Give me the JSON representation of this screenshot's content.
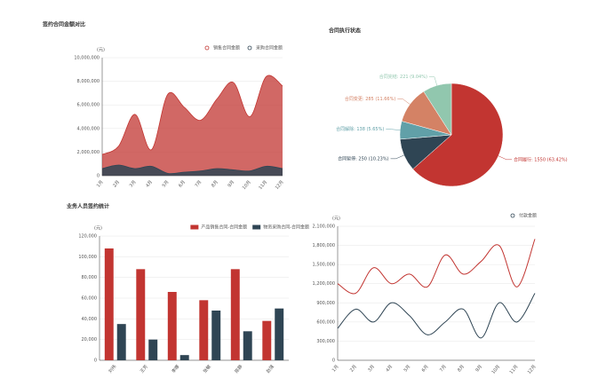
{
  "chart_data": [
    {
      "type": "area",
      "title": "签约合同金额对比",
      "y_label": "(元)",
      "categories": [
        "1月",
        "2月",
        "3月",
        "4月",
        "5月",
        "6月",
        "7月",
        "8月",
        "9月",
        "10月",
        "11月",
        "12月"
      ],
      "series": [
        {
          "name": "销售合同金额",
          "color": "#c23531",
          "values": [
            1800000,
            2500000,
            5200000,
            2200000,
            6900000,
            5800000,
            4700000,
            6500000,
            7900000,
            5000000,
            8400000,
            7600000
          ]
        },
        {
          "name": "采购合同金额",
          "color": "#2f4554",
          "values": [
            600000,
            900000,
            600000,
            800000,
            200000,
            300000,
            400000,
            600000,
            500000,
            400000,
            800000,
            600000
          ]
        }
      ],
      "ylim": [
        0,
        10000000
      ],
      "yticks": [
        0,
        {
          "value": 2000000,
          "label": "2,000,000"
        },
        {
          "value": 4000000,
          "label": "4,000,000"
        },
        {
          "value": 6000000,
          "label": "6,000,000"
        },
        {
          "value": 8000000,
          "label": "8,000,000"
        },
        {
          "value": 10000000,
          "label": "10,000,000"
        }
      ],
      "grid": true
    },
    {
      "type": "pie",
      "title": "合同执行状态",
      "values": [
        1550,
        250,
        138,
        285,
        221
      ],
      "value_labels": [
        "合同履行: 1550 (63.42%)",
        "合同暂停: 250 (10.23%)",
        "合同解除: 138 (5.65%)",
        "合同变更: 285 (11.66%)",
        "合同完结: 221 (9.04%)"
      ],
      "colors": [
        "#c23531",
        "#2f4554",
        "#61a0a8",
        "#d48265",
        "#91c7ae"
      ]
    },
    {
      "type": "bar",
      "title": "业务人员签约统计",
      "y_label": "(元)",
      "categories": [
        "刘伟",
        "王芳",
        "李娜",
        "张敏",
        "陈静",
        "赵强"
      ],
      "series": [
        {
          "name": "产品销售合同-合同金额",
          "color": "#c23531",
          "values": [
            108000,
            88000,
            66000,
            58000,
            88000,
            38000
          ]
        },
        {
          "name": "物资采购合同-合同金额",
          "color": "#2f4554",
          "values": [
            35000,
            20000,
            5000,
            48000,
            28000,
            50000
          ]
        }
      ],
      "ylim": [
        0,
        120000
      ],
      "yticks": [
        0,
        {
          "value": 20000,
          "label": "20,000"
        },
        {
          "value": 40000,
          "label": "40,000"
        },
        {
          "value": 60000,
          "label": "60,000"
        },
        {
          "value": 80000,
          "label": "80,000"
        },
        {
          "value": 100000,
          "label": "100,000"
        },
        {
          "value": 120000,
          "label": "120,000"
        }
      ],
      "grid": true
    },
    {
      "type": "line",
      "y_label": "(元)",
      "categories": [
        "1月",
        "2月",
        "3月",
        "4月",
        "5月",
        "6月",
        "7月",
        "8月",
        "9月",
        "10月",
        "11月",
        "12月"
      ],
      "series": [
        {
          "color": "#c23531",
          "values": [
            1200000,
            1050000,
            1450000,
            1200000,
            1350000,
            1150000,
            1650000,
            1350000,
            1550000,
            1800000,
            1150000,
            1900000
          ]
        },
        {
          "name": "付款金额",
          "color": "#2f4554",
          "values": [
            500000,
            800000,
            600000,
            900000,
            700000,
            400000,
            600000,
            800000,
            350000,
            900000,
            600000,
            1050000
          ]
        }
      ],
      "ylim": [
        0,
        2100000
      ],
      "yticks": [
        0,
        {
          "value": 300000,
          "label": "300,000"
        },
        {
          "value": 600000,
          "label": "600,000"
        },
        {
          "value": 900000,
          "label": "900,000"
        },
        {
          "value": 1200000,
          "label": "1,200,000"
        },
        {
          "value": 1500000,
          "label": "1,500,000"
        },
        {
          "value": 1800000,
          "label": "1,800,000"
        },
        {
          "value": 2100000,
          "label": "2,100,000"
        }
      ],
      "grid": true
    }
  ]
}
